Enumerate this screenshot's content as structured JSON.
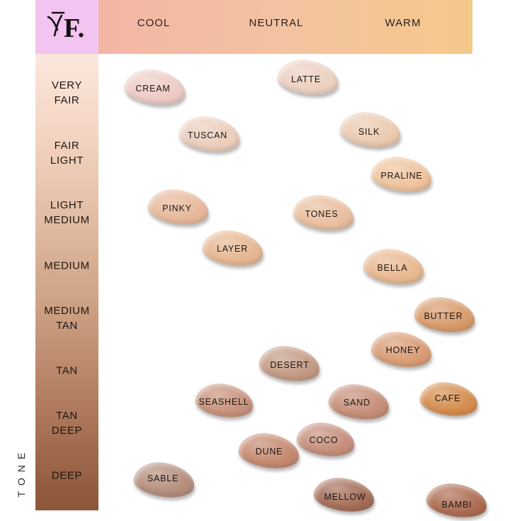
{
  "logo": {
    "text": "F.",
    "background": "#f2c4ef"
  },
  "undertones": [
    "COOL",
    "NEUTRAL",
    "WARM"
  ],
  "tones": [
    [
      "VERY",
      "FAIR"
    ],
    [
      "FAIR",
      "LIGHT"
    ],
    [
      "LIGHT",
      "MEDIUM"
    ],
    [
      "MEDIUM"
    ],
    [
      "MEDIUM",
      "TAN"
    ],
    [
      "TAN"
    ],
    [
      "TAN",
      "DEEP"
    ],
    [
      "DEEP"
    ]
  ],
  "axis_label": "TONE",
  "shades": [
    {
      "name": "CREAM",
      "color": "#edcbc4"
    },
    {
      "name": "LATTE",
      "color": "#ecd0c0"
    },
    {
      "name": "TUSCAN",
      "color": "#ebcdba"
    },
    {
      "name": "SILK",
      "color": "#ebcab0"
    },
    {
      "name": "PRALINE",
      "color": "#eec39c"
    },
    {
      "name": "PINKY",
      "color": "#e7b89a"
    },
    {
      "name": "TONES",
      "color": "#e9be9e"
    },
    {
      "name": "LAYER",
      "color": "#e6b791"
    },
    {
      "name": "BELLA",
      "color": "#e9b890"
    },
    {
      "name": "BUTTER",
      "color": "#d89a6a"
    },
    {
      "name": "HONEY",
      "color": "#d99b74"
    },
    {
      "name": "DESERT",
      "color": "#c39984"
    },
    {
      "name": "SEASHELL",
      "color": "#c7917b"
    },
    {
      "name": "SAND",
      "color": "#c58d76"
    },
    {
      "name": "CAFE",
      "color": "#d48c4c"
    },
    {
      "name": "COCO",
      "color": "#c58e7b"
    },
    {
      "name": "DUNE",
      "color": "#c4886e"
    },
    {
      "name": "SABLE",
      "color": "#b48d7c"
    },
    {
      "name": "MELLOW",
      "color": "#a46d58"
    },
    {
      "name": "BAMBI",
      "color": "#ac6b50"
    }
  ]
}
